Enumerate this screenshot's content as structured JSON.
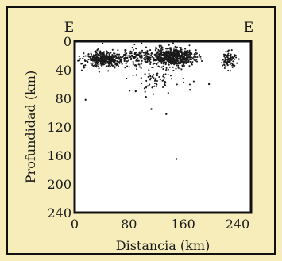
{
  "colors": {
    "background": "#f6edbb",
    "frame": "#111111",
    "plot_bg": "#ffffff",
    "points": "#1a1a1a"
  },
  "chart_data": {
    "type": "scatter",
    "title": "",
    "xlabel": "Distancia (km)",
    "ylabel": "Profundidad (km)",
    "xlim": [
      0,
      260
    ],
    "ylim": [
      240,
      0
    ],
    "x_ticks": [
      0,
      80,
      160,
      240
    ],
    "y_ticks": [
      0,
      40,
      80,
      120,
      160,
      200,
      240
    ],
    "annotations": [
      {
        "text": "E",
        "position": "top-left"
      },
      {
        "text": "E",
        "position": "top-right"
      }
    ],
    "grid": false,
    "legend": "none",
    "clusters": [
      {
        "x_center": 45,
        "y_center": 25,
        "x_spread": 28,
        "y_spread": 9,
        "count": 420
      },
      {
        "x_center": 145,
        "y_center": 22,
        "x_spread": 26,
        "y_spread": 10,
        "count": 650
      },
      {
        "x_center": 95,
        "y_center": 22,
        "x_spread": 18,
        "y_spread": 10,
        "count": 130
      },
      {
        "x_center": 228,
        "y_center": 27,
        "x_spread": 8,
        "y_spread": 11,
        "count": 90
      },
      {
        "x_center": 120,
        "y_center": 55,
        "x_spread": 35,
        "y_spread": 15,
        "count": 70
      }
    ],
    "points": [
      {
        "x": 150,
        "y": 165
      },
      {
        "x": 16,
        "y": 82
      },
      {
        "x": 135,
        "y": 102
      },
      {
        "x": 113,
        "y": 95
      },
      {
        "x": 170,
        "y": 68
      },
      {
        "x": 105,
        "y": 78
      },
      {
        "x": 90,
        "y": 70
      },
      {
        "x": 198,
        "y": 60
      }
    ]
  }
}
